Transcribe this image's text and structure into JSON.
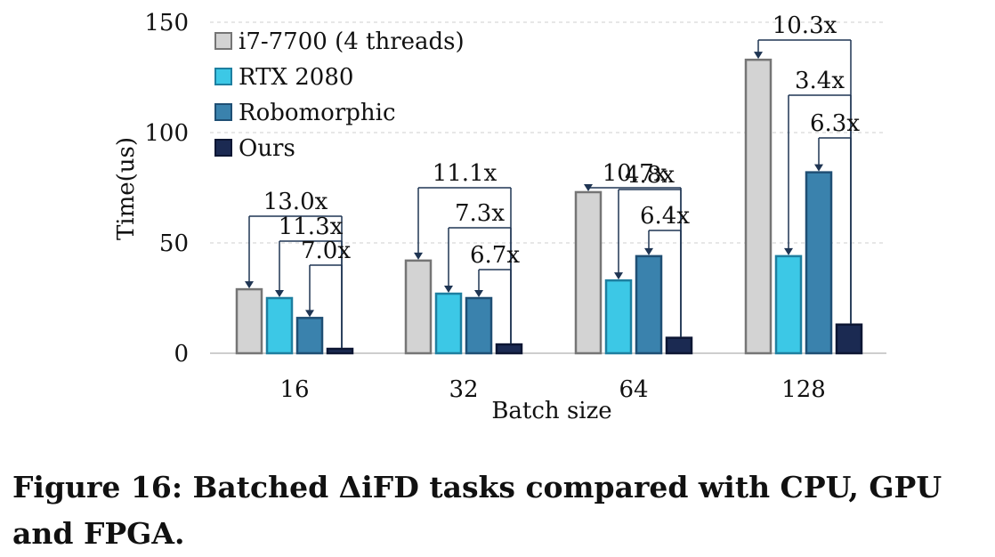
{
  "chart_data": {
    "type": "bar",
    "xlabel": "Batch size",
    "ylabel": "Time(us)",
    "ylim": [
      0,
      150
    ],
    "yticks": [
      0,
      50,
      100,
      150
    ],
    "grid": "horizontal dashed",
    "legend_position": "top-left",
    "categories": [
      "16",
      "32",
      "64",
      "128"
    ],
    "series": [
      {
        "name": "i7-7700 (4 threads)",
        "color": "#d3d3d3",
        "stroke": "#757575",
        "values": [
          29,
          42,
          73,
          133
        ]
      },
      {
        "name": "RTX 2080",
        "color": "#3cc8e6",
        "stroke": "#1e7fa0",
        "values": [
          25,
          27,
          33,
          44
        ]
      },
      {
        "name": "Robomorphic",
        "color": "#3a82ad",
        "stroke": "#1f4f74",
        "values": [
          16,
          25,
          44,
          82
        ]
      },
      {
        "name": "Ours",
        "color": "#1b2a52",
        "stroke": "#0d1633",
        "values": [
          2,
          4,
          7,
          13
        ]
      }
    ],
    "annotations": [
      {
        "category": "16",
        "labels": [
          "13.0x",
          "11.3x",
          "7.0x"
        ]
      },
      {
        "category": "32",
        "labels": [
          "11.1x",
          "7.3x",
          "6.7x"
        ]
      },
      {
        "category": "64",
        "labels": [
          "10.7x",
          "4.8x",
          "6.4x"
        ]
      },
      {
        "category": "128",
        "labels": [
          "10.3x",
          "3.4x",
          "6.3x"
        ]
      }
    ]
  },
  "caption": "Figure 16: Batched ΔiFD tasks compared with CPU, GPU and FPGA."
}
